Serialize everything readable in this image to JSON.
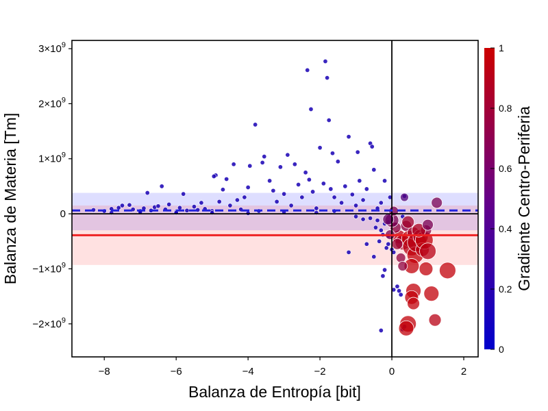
{
  "chart_data": {
    "type": "scatter",
    "xlabel": "Balanza de Entropía [bit]",
    "ylabel": "Balanza de Materia [Tm]",
    "xlim": [
      -8.9,
      2.4
    ],
    "ylim": [
      -2.6,
      3.15
    ],
    "y_unit_multiplier": 1000000000,
    "x_ticks": [
      -8,
      -6,
      -4,
      -2,
      0,
      2
    ],
    "x_tick_labels": [
      "−8",
      "−6",
      "−4",
      "−2",
      "0",
      "2"
    ],
    "y_ticks": [
      -2,
      -1,
      0,
      1,
      2,
      3
    ],
    "y_tick_labels": [
      {
        "mant": "−2×10",
        "exp": "9"
      },
      {
        "mant": "−1×10",
        "exp": "9"
      },
      {
        "mant": "0",
        "exp": ""
      },
      {
        "mant": "1×10",
        "exp": "9"
      },
      {
        "mant": "2×10",
        "exp": "9"
      },
      {
        "mant": "3×10",
        "exp": "9"
      }
    ],
    "colorbar": {
      "label": "Gradiente Centro-Periferia",
      "ticks": [
        "0",
        "0.2",
        "0.4",
        "0.6",
        "0.8",
        "1"
      ],
      "low_color": "#0000cc",
      "high_color": "#cc0000"
    },
    "reference_lines": {
      "blue_mean": 0.06,
      "blue_band": [
        -0.3,
        0.38
      ],
      "red_mean": -0.39,
      "red_band": [
        -0.93,
        0.15
      ],
      "blue_color": "#2222dd",
      "red_color": "#ee2222"
    },
    "series": [
      {
        "group": "periphery",
        "points": [
          [
            -8.3,
            0.07
          ],
          [
            -8.0,
            0.05
          ],
          [
            -7.8,
            0.09
          ],
          [
            -7.6,
            0.11
          ],
          [
            -7.5,
            0.15
          ],
          [
            -7.3,
            0.16
          ],
          [
            -7.2,
            0.08
          ],
          [
            -7.0,
            0.05
          ],
          [
            -6.9,
            0.1
          ],
          [
            -6.8,
            0.38
          ],
          [
            -6.7,
            0.06
          ],
          [
            -6.6,
            0.12
          ],
          [
            -6.5,
            0.14
          ],
          [
            -6.4,
            0.5
          ],
          [
            -6.3,
            0.08
          ],
          [
            -6.2,
            0.17
          ],
          [
            -6.0,
            0.04
          ],
          [
            -5.9,
            0.11
          ],
          [
            -5.8,
            0.36
          ],
          [
            -5.7,
            0.06
          ],
          [
            -5.5,
            0.13
          ],
          [
            -5.4,
            0.07
          ],
          [
            -5.3,
            0.2
          ],
          [
            -5.2,
            0.09
          ],
          [
            -5.0,
            0.05
          ],
          [
            -4.9,
            0.7
          ],
          [
            -4.95,
            0.68
          ],
          [
            -4.8,
            0.22
          ],
          [
            -4.7,
            0.44
          ],
          [
            -4.6,
            0.63
          ],
          [
            -4.5,
            0.15
          ],
          [
            -4.4,
            0.9
          ],
          [
            -4.3,
            0.25
          ],
          [
            -4.2,
            0.08
          ],
          [
            -4.1,
            0.3
          ],
          [
            -4.0,
            0.48
          ],
          [
            -3.95,
            0.87
          ],
          [
            -3.8,
            1.62
          ],
          [
            -3.7,
            0.05
          ],
          [
            -3.6,
            0.93
          ],
          [
            -3.55,
            1.04
          ],
          [
            -3.4,
            0.6
          ],
          [
            -3.3,
            0.42
          ],
          [
            -3.2,
            0.22
          ],
          [
            -3.1,
            0.85
          ],
          [
            -3.0,
            0.36
          ],
          [
            -2.9,
            1.07
          ],
          [
            -2.8,
            0.15
          ],
          [
            -2.7,
            0.9
          ],
          [
            -2.6,
            0.53
          ],
          [
            -2.5,
            0.3
          ],
          [
            -2.4,
            0.75
          ],
          [
            -2.35,
            2.61
          ],
          [
            -2.3,
            0.62
          ],
          [
            -2.25,
            1.9
          ],
          [
            -2.2,
            0.4
          ],
          [
            -2.1,
            0.1
          ],
          [
            -2.0,
            1.2
          ],
          [
            -1.9,
            0.55
          ],
          [
            -1.85,
            2.77
          ],
          [
            -1.8,
            2.47
          ],
          [
            -1.75,
            1.7
          ],
          [
            -1.7,
            0.45
          ],
          [
            -1.65,
            1.1
          ],
          [
            -1.6,
            0.3
          ],
          [
            -1.5,
            0.95
          ],
          [
            -1.4,
            0.2
          ],
          [
            -1.3,
            0.5
          ],
          [
            -1.2,
            1.4
          ],
          [
            -1.1,
            0.35
          ],
          [
            -1.0,
            0.15
          ],
          [
            -0.95,
            1.12
          ],
          [
            -0.9,
            0.6
          ],
          [
            -0.8,
            0.25
          ],
          [
            -0.7,
            0.45
          ],
          [
            -0.6,
            1.28
          ],
          [
            -0.55,
            1.22
          ],
          [
            -0.5,
            0.8
          ],
          [
            -0.45,
            -0.25
          ],
          [
            -0.4,
            0.1
          ],
          [
            -0.35,
            -0.5
          ],
          [
            -0.3,
            0.2
          ],
          [
            -0.25,
            -0.38
          ],
          [
            -0.2,
            0.6
          ],
          [
            -0.15,
            -0.62
          ],
          [
            -0.1,
            -0.4
          ],
          [
            -0.05,
            0.3
          ],
          [
            -0.2,
            -1.02
          ],
          [
            -0.25,
            -1.13
          ],
          [
            -0.1,
            -0.15
          ],
          [
            0.05,
            -1.38
          ],
          [
            0.15,
            -1.32
          ],
          [
            0.2,
            -1.4
          ],
          [
            0.25,
            -1.47
          ],
          [
            0.3,
            -2.1
          ],
          [
            0.35,
            -2.05
          ],
          [
            -0.3,
            -2.12
          ],
          [
            0.1,
            -0.2
          ],
          [
            0.3,
            -0.05
          ],
          [
            0.35,
            0.32
          ],
          [
            -1.6,
            0.05
          ],
          [
            -2.1,
            0.02
          ],
          [
            -3.0,
            0.03
          ],
          [
            -4.0,
            0.01
          ],
          [
            -5.0,
            0.02
          ],
          [
            -6.0,
            0.02
          ],
          [
            -7.0,
            0.03
          ],
          [
            -7.8,
            0.02
          ],
          [
            -1.0,
            -0.05
          ],
          [
            -0.8,
            -0.1
          ],
          [
            -0.6,
            -0.08
          ],
          [
            -0.4,
            -0.12
          ],
          [
            -0.3,
            -0.3
          ],
          [
            -0.2,
            -0.18
          ],
          [
            -0.1,
            -0.55
          ],
          [
            0.0,
            -0.65
          ],
          [
            0.05,
            -0.7
          ],
          [
            -1.2,
            -0.7
          ],
          [
            -0.5,
            -0.78
          ],
          [
            -0.7,
            -0.55
          ]
        ]
      },
      {
        "group": "center",
        "points": [
          [
            0.2,
            -0.42,
            0.9,
            10
          ],
          [
            0.3,
            -0.52,
            0.85,
            11
          ],
          [
            0.4,
            -0.22,
            0.7,
            8
          ],
          [
            0.5,
            -0.45,
            0.95,
            12
          ],
          [
            0.55,
            -0.6,
            0.9,
            13
          ],
          [
            0.6,
            -0.35,
            0.8,
            9
          ],
          [
            0.65,
            -0.75,
            0.95,
            12
          ],
          [
            0.7,
            -0.52,
            0.9,
            14
          ],
          [
            0.8,
            -0.42,
            0.85,
            11
          ],
          [
            0.85,
            -0.65,
            0.9,
            10
          ],
          [
            0.9,
            -0.48,
            0.95,
            13
          ],
          [
            0.95,
            -0.3,
            0.7,
            8
          ],
          [
            1.0,
            -0.68,
            0.9,
            12
          ],
          [
            0.55,
            -0.95,
            0.95,
            11
          ],
          [
            0.6,
            -1.4,
            0.95,
            11
          ],
          [
            0.55,
            -1.52,
            0.95,
            10
          ],
          [
            0.6,
            -1.63,
            0.95,
            9
          ],
          [
            0.95,
            -1.0,
            0.95,
            10
          ],
          [
            1.1,
            -1.45,
            0.95,
            11
          ],
          [
            1.2,
            -1.93,
            0.9,
            9
          ],
          [
            1.55,
            -1.03,
            0.95,
            12
          ],
          [
            0.45,
            -2.0,
            0.95,
            12
          ],
          [
            0.4,
            -2.08,
            0.95,
            11
          ],
          [
            0.1,
            -0.25,
            0.7,
            8
          ],
          [
            0.0,
            -0.12,
            0.6,
            10
          ],
          [
            -0.1,
            -0.1,
            0.5,
            8
          ],
          [
            0.05,
            0.05,
            0.6,
            7
          ],
          [
            0.35,
            0.3,
            0.4,
            6
          ],
          [
            1.25,
            0.2,
            0.6,
            8
          ],
          [
            -0.05,
            -0.38,
            0.6,
            7
          ],
          [
            0.15,
            -0.55,
            0.75,
            8
          ],
          [
            0.25,
            -0.8,
            0.7,
            7
          ],
          [
            0.75,
            -0.3,
            0.85,
            10
          ],
          [
            1.0,
            -0.2,
            0.6,
            8
          ],
          [
            0.45,
            -0.15,
            0.8,
            9
          ],
          [
            0.3,
            -0.95,
            0.7,
            7
          ]
        ]
      }
    ]
  }
}
